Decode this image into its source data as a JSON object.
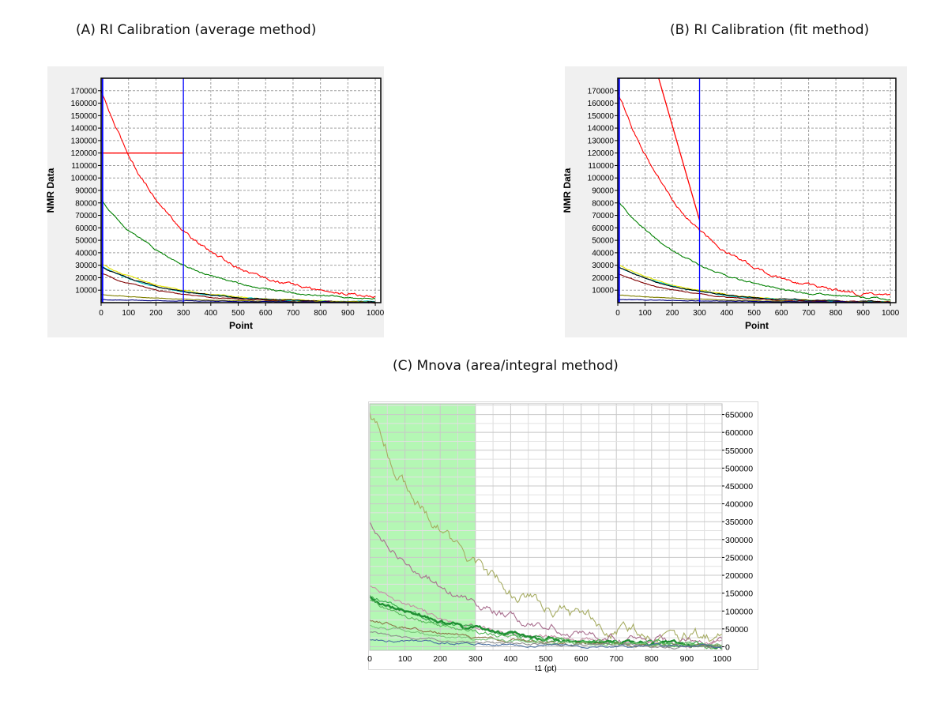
{
  "panels": {
    "a_title": "(A)  RI Calibration (average method)",
    "b_title": "(B) RI Calibration (fit method)",
    "c_title": "(C) Mnova (area/integral method)"
  },
  "chart_data": [
    {
      "id": "A",
      "type": "line",
      "title": "(A)  RI Calibration (average method)",
      "xlabel": "Point",
      "ylabel": "NMR Data",
      "xlim": [
        0,
        1020
      ],
      "ylim": [
        0,
        180000
      ],
      "xticks": [
        0,
        100,
        200,
        300,
        400,
        500,
        600,
        700,
        800,
        900,
        1000
      ],
      "yticks": [
        10000,
        20000,
        30000,
        40000,
        50000,
        60000,
        70000,
        80000,
        90000,
        100000,
        110000,
        120000,
        130000,
        140000,
        150000,
        160000,
        170000
      ],
      "grid": true,
      "background": "#f0f0f0",
      "series": [
        {
          "name": "red",
          "color": "#ff0000",
          "amp": 170000,
          "tau": 280
        },
        {
          "name": "green",
          "color": "#008000",
          "amp": 82000,
          "tau": 300
        },
        {
          "name": "yellow",
          "color": "#e6e600",
          "amp": 31000,
          "tau": 260
        },
        {
          "name": "cyan",
          "color": "#00c8c8",
          "amp": 29500,
          "tau": 250
        },
        {
          "name": "black",
          "color": "#000000",
          "amp": 29000,
          "tau": 255
        },
        {
          "name": "darkred",
          "color": "#800000",
          "amp": 23500,
          "tau": 240
        },
        {
          "name": "olive",
          "color": "#808000",
          "amp": 6500,
          "tau": 350
        },
        {
          "name": "navy",
          "color": "#000080",
          "amp": 2500,
          "tau": 500
        }
      ],
      "markers": {
        "vlines": [
          5,
          300
        ],
        "hline": {
          "y": 120000,
          "x0": 0,
          "x1": 300
        }
      }
    },
    {
      "id": "B",
      "type": "line",
      "title": "(B) RI Calibration (fit method)",
      "xlabel": "Point",
      "ylabel": "NMR Data",
      "xlim": [
        0,
        1020
      ],
      "ylim": [
        0,
        180000
      ],
      "xticks": [
        0,
        100,
        200,
        300,
        400,
        500,
        600,
        700,
        800,
        900,
        1000
      ],
      "yticks": [
        10000,
        20000,
        30000,
        40000,
        50000,
        60000,
        70000,
        80000,
        90000,
        100000,
        110000,
        120000,
        130000,
        140000,
        150000,
        160000,
        170000
      ],
      "grid": true,
      "background": "#f0f0f0",
      "series": [
        {
          "name": "red",
          "color": "#ff0000",
          "amp": 170000,
          "tau": 280
        },
        {
          "name": "green",
          "color": "#008000",
          "amp": 82000,
          "tau": 300
        },
        {
          "name": "yellow",
          "color": "#e6e600",
          "amp": 31000,
          "tau": 260
        },
        {
          "name": "cyan",
          "color": "#00c8c8",
          "amp": 29500,
          "tau": 250
        },
        {
          "name": "black",
          "color": "#000000",
          "amp": 29000,
          "tau": 255
        },
        {
          "name": "darkred",
          "color": "#800000",
          "amp": 23500,
          "tau": 240
        },
        {
          "name": "olive",
          "color": "#808000",
          "amp": 6500,
          "tau": 350
        },
        {
          "name": "navy",
          "color": "#000080",
          "amp": 2500,
          "tau": 500
        }
      ],
      "markers": {
        "vlines": [
          5,
          300
        ],
        "fitline": {
          "x0": 150,
          "y0": 180000,
          "x1": 300,
          "y1": 66000
        }
      }
    },
    {
      "id": "C",
      "type": "line",
      "title": "(C) Mnova (area/integral method)",
      "xlabel": "t1 (pt)",
      "ylabel": "",
      "xlim": [
        0,
        1000
      ],
      "ylim": [
        -10000,
        680000
      ],
      "xticks": [
        0,
        100,
        200,
        300,
        400,
        500,
        600,
        700,
        800,
        900,
        1000
      ],
      "yticks": [
        0,
        50000,
        100000,
        150000,
        200000,
        250000,
        300000,
        350000,
        400000,
        450000,
        500000,
        550000,
        600000,
        650000
      ],
      "grid": true,
      "yaxis_side": "right",
      "highlight_region": [
        0,
        300
      ],
      "highlight_color": "#b4f7b4",
      "series": [
        {
          "name": "olive",
          "color": "#a6ac62",
          "amp": 660000,
          "tau": 280
        },
        {
          "name": "mauve",
          "color": "#a86e8e",
          "amp": 350000,
          "tau": 280
        },
        {
          "name": "pink",
          "color": "#c68fa6",
          "amp": 170000,
          "tau": 280
        },
        {
          "name": "green1",
          "color": "#35a84a",
          "amp": 145000,
          "tau": 270
        },
        {
          "name": "green2",
          "color": "#1f8f33",
          "amp": 140000,
          "tau": 285
        },
        {
          "name": "green3",
          "color": "#59b85c",
          "amp": 130000,
          "tau": 260
        },
        {
          "name": "brown",
          "color": "#8a7648",
          "amp": 75000,
          "tau": 300
        },
        {
          "name": "lightgreen",
          "color": "#7bc57b",
          "amp": 60000,
          "tau": 300
        },
        {
          "name": "gray",
          "color": "#8c8c8c",
          "amp": 40000,
          "tau": 320
        },
        {
          "name": "steelblue",
          "color": "#4a6fa0",
          "amp": 20000,
          "tau": 350
        }
      ]
    }
  ]
}
